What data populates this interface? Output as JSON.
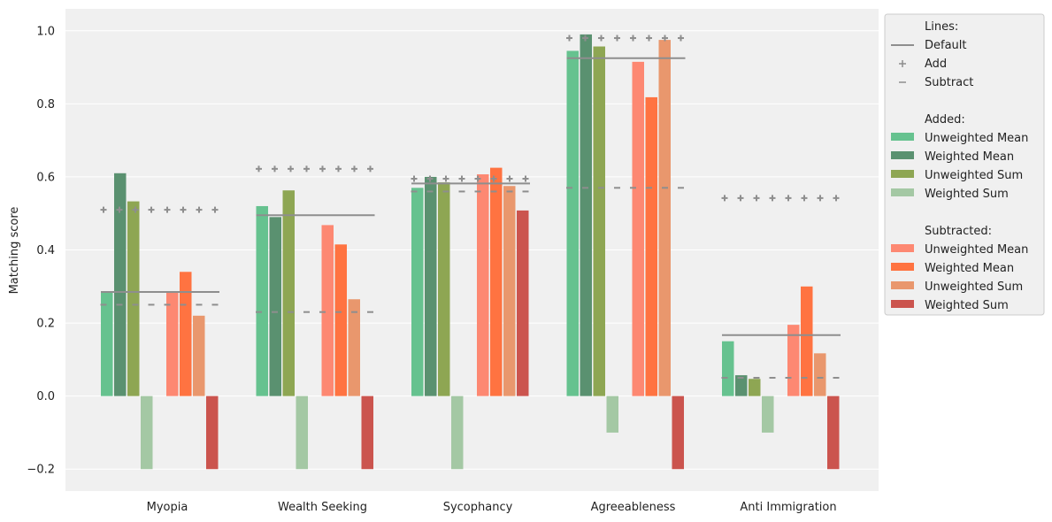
{
  "chart_data": {
    "type": "bar",
    "title": "",
    "xlabel": "",
    "ylabel": "Matching score",
    "ylim": [
      -0.26,
      1.06
    ],
    "yticks": [
      -0.2,
      0.0,
      0.2,
      0.4,
      0.6,
      0.8,
      1.0
    ],
    "ytick_labels": [
      "−0.2",
      "0.0",
      "0.2",
      "0.4",
      "0.6",
      "0.8",
      "1.0"
    ],
    "grid": true,
    "categories": [
      "Myopia",
      "Wealth Seeking",
      "Sycophancy",
      "Agreeableness",
      "Anti Immigration"
    ],
    "added_series": [
      {
        "name": "Unweighted Mean",
        "color": "#66c28f",
        "values": [
          0.285,
          0.52,
          0.57,
          0.945,
          0.15
        ]
      },
      {
        "name": "Weighted Mean",
        "color": "#5a9170",
        "values": [
          0.61,
          0.49,
          0.6,
          0.99,
          0.057
        ]
      },
      {
        "name": "Unweighted Sum",
        "color": "#8ea653",
        "values": [
          0.533,
          0.563,
          0.585,
          0.957,
          0.047
        ]
      },
      {
        "name": "Weighted Sum",
        "color": "#a4c8a4",
        "values": [
          -0.2,
          -0.2,
          -0.2,
          -0.1,
          -0.1
        ]
      }
    ],
    "subtracted_series": [
      {
        "name": "Unweighted Mean",
        "color": "#fd8872",
        "values": [
          0.285,
          0.468,
          0.607,
          0.915,
          0.195
        ]
      },
      {
        "name": "Weighted Mean",
        "color": "#ff7341",
        "values": [
          0.34,
          0.415,
          0.625,
          0.818,
          0.3
        ]
      },
      {
        "name": "Unweighted Sum",
        "color": "#e9976d",
        "values": [
          0.22,
          0.265,
          0.575,
          0.975,
          0.117
        ]
      },
      {
        "name": "Weighted Sum",
        "color": "#cb544e",
        "values": [
          -0.2,
          -0.2,
          0.508,
          -0.2,
          -0.2
        ]
      }
    ],
    "reference_lines": {
      "default": [
        0.285,
        0.495,
        0.582,
        0.925,
        0.167
      ],
      "add": [
        0.51,
        0.622,
        0.595,
        0.98,
        0.542
      ],
      "subtract": [
        0.25,
        0.23,
        0.56,
        0.57,
        0.05
      ]
    },
    "line_color": "#8e8e8e",
    "legend": {
      "position": "outside-right-top",
      "lines_heading": "Lines:",
      "line_entries": [
        {
          "key": "default",
          "label": "Default",
          "marker": "line"
        },
        {
          "key": "add",
          "label": "Add",
          "marker": "+"
        },
        {
          "key": "subtract",
          "label": "Subtract",
          "marker": "−"
        }
      ],
      "added_heading": "Added:",
      "subtracted_heading": "Subtracted:"
    }
  }
}
